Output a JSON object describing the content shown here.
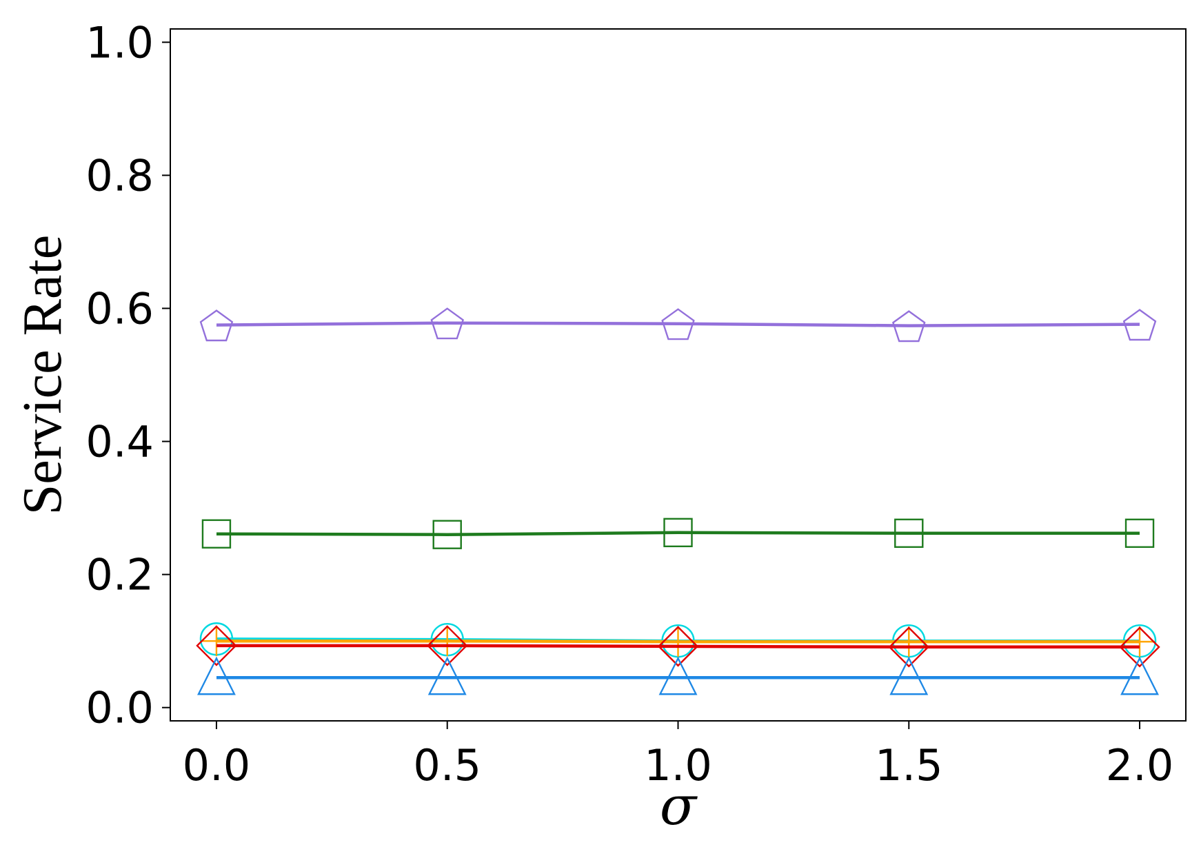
{
  "chart_data": {
    "type": "line",
    "title": "",
    "xlabel": "σ",
    "ylabel": "Service Rate",
    "x": [
      0.0,
      0.5,
      1.0,
      1.5,
      2.0
    ],
    "xlim": [
      -0.1,
      2.1
    ],
    "ylim": [
      -0.02,
      1.02
    ],
    "xticks": [
      "0.0",
      "0.5",
      "1.0",
      "1.5",
      "2.0"
    ],
    "yticks": [
      "0.0",
      "0.2",
      "0.4",
      "0.6",
      "0.8",
      "1.0"
    ],
    "grid": false,
    "series": [
      {
        "color": "#9370DB",
        "marker": "pentagon",
        "values": [
          0.575,
          0.578,
          0.577,
          0.574,
          0.576
        ]
      },
      {
        "color": "#1E7B1E",
        "marker": "square",
        "values": [
          0.261,
          0.26,
          0.263,
          0.262,
          0.262
        ]
      },
      {
        "color": "#00D8E0",
        "marker": "circle",
        "values": [
          0.103,
          0.102,
          0.1,
          0.1,
          0.1
        ]
      },
      {
        "color": "#FFA500",
        "marker": "plus",
        "values": [
          0.1,
          0.1,
          0.099,
          0.099,
          0.099
        ]
      },
      {
        "color": "#E00000",
        "marker": "diamond",
        "values": [
          0.093,
          0.093,
          0.092,
          0.091,
          0.091
        ]
      },
      {
        "color": "#1E88E5",
        "marker": "triangle",
        "values": [
          0.045,
          0.045,
          0.045,
          0.045,
          0.045
        ]
      }
    ]
  }
}
